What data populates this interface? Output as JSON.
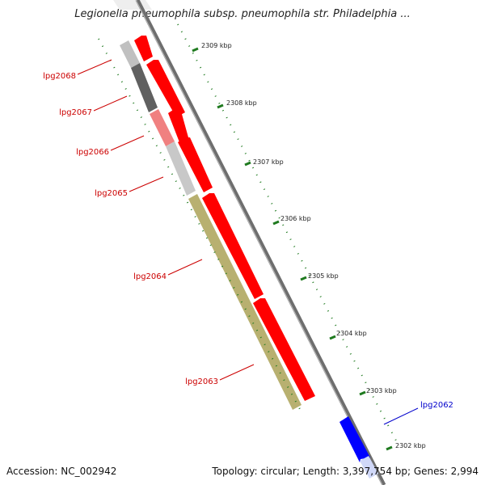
{
  "title": "Legionella pneumophila subsp. pneumophila str. Philadelphia ...",
  "accession_text": "Accession: NC_002942",
  "topology_text": "Topology: circular; Length: 3,397,754 bp; Genes: 2,994",
  "ticks": [
    "2309 kbp",
    "2308 kbp",
    "2307 kbp",
    "2306 kbp",
    "2305 kbp",
    "2304 kbp",
    "2303 kbp",
    "2302 kbp"
  ],
  "genes": [
    {
      "label": "lpg2068",
      "strand": "reverse",
      "color": "#ff0000"
    },
    {
      "label": "lpg2067",
      "strand": "reverse",
      "color": "#ff0000"
    },
    {
      "label": "lpg2066",
      "strand": "reverse",
      "color": "#ff0000"
    },
    {
      "label": "lpg2065",
      "strand": "reverse",
      "color": "#ff0000"
    },
    {
      "label": "lpg2064",
      "strand": "reverse",
      "color": "#ff0000"
    },
    {
      "label": "lpg2063",
      "strand": "reverse",
      "color": "#ff0000"
    },
    {
      "label": "lpg2062",
      "strand": "forward",
      "color": "#0000ff"
    }
  ],
  "cog_colors": [
    "#c0c0c0",
    "#606060",
    "#f08080",
    "#c8c8c8",
    "#b8b070"
  ],
  "colors": {
    "backbone": "#808080",
    "tick": "#1f7a1f",
    "reverse_label": "#cc0000",
    "forward_label": "#0000cc"
  }
}
